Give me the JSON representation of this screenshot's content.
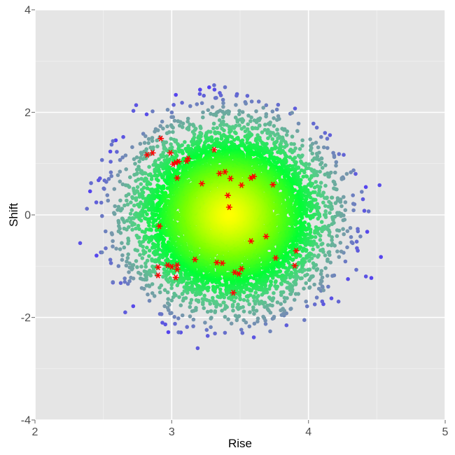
{
  "chart_data": {
    "type": "scatter",
    "xlabel": "Rise",
    "ylabel": "Shift",
    "xlim": [
      2,
      5
    ],
    "ylim": [
      -4,
      4
    ],
    "x_ticks": [
      2,
      3,
      4,
      5
    ],
    "y_ticks": [
      -4,
      -2,
      0,
      2,
      4
    ],
    "grid": true,
    "background": "#e5e5e5",
    "grid_major_color": "#ffffff",
    "grid_minor_color": "#f2f2f2",
    "cloud": {
      "center": [
        3.42,
        0.0
      ],
      "sd_x": 0.32,
      "sd_y": 0.78,
      "count": 9000,
      "color_stops": [
        "#ffff00",
        "#7cff00",
        "#00ff33",
        "#55cc88",
        "#7799aa",
        "#5544ee"
      ]
    },
    "highlight": {
      "marker": "asterisk",
      "color": "#ff0000",
      "points": [
        [
          2.82,
          1.17
        ],
        [
          2.86,
          1.21
        ],
        [
          2.92,
          1.49
        ],
        [
          2.99,
          1.21
        ],
        [
          3.01,
          0.99
        ],
        [
          3.03,
          1.02
        ],
        [
          3.05,
          1.04
        ],
        [
          3.11,
          1.05
        ],
        [
          3.12,
          1.1
        ],
        [
          3.04,
          0.72
        ],
        [
          3.31,
          1.27
        ],
        [
          3.35,
          0.81
        ],
        [
          3.39,
          0.84
        ],
        [
          3.43,
          0.71
        ],
        [
          3.22,
          0.61
        ],
        [
          3.41,
          0.38
        ],
        [
          3.42,
          0.15
        ],
        [
          3.51,
          0.58
        ],
        [
          3.58,
          0.72
        ],
        [
          3.6,
          0.75
        ],
        [
          3.74,
          0.59
        ],
        [
          2.91,
          -0.22
        ],
        [
          3.58,
          -0.51
        ],
        [
          3.69,
          -0.42
        ],
        [
          3.76,
          -0.84
        ],
        [
          3.91,
          -0.7
        ],
        [
          3.17,
          -0.87
        ],
        [
          3.33,
          -0.93
        ],
        [
          3.37,
          -0.94
        ],
        [
          2.97,
          -0.98
        ],
        [
          3.0,
          -1.01
        ],
        [
          3.04,
          -0.98
        ],
        [
          2.9,
          -1.02
        ],
        [
          3.04,
          -1.06
        ],
        [
          3.46,
          -1.12
        ],
        [
          3.49,
          -1.15
        ],
        [
          3.51,
          -1.05
        ],
        [
          2.9,
          -1.18
        ],
        [
          3.03,
          -1.22
        ],
        [
          3.9,
          -0.99
        ],
        [
          3.45,
          -1.52
        ]
      ]
    },
    "outliers": [
      [
        3.31,
        2.53
      ],
      [
        3.39,
        2.49
      ],
      [
        2.74,
        2.14
      ],
      [
        2.72,
        2.03
      ],
      [
        2.86,
        2.02
      ],
      [
        2.97,
        2.05
      ],
      [
        2.57,
        1.44
      ],
      [
        2.56,
        1.37
      ],
      [
        2.49,
        1.07
      ],
      [
        2.41,
        0.62
      ],
      [
        2.38,
        0.12
      ],
      [
        2.33,
        -0.55
      ],
      [
        2.49,
        -0.73
      ],
      [
        2.57,
        -1.31
      ],
      [
        2.66,
        -1.9
      ],
      [
        3.05,
        -2.29
      ],
      [
        3.19,
        -2.6
      ],
      [
        3.72,
        -2.27
      ],
      [
        3.97,
        -2.05
      ],
      [
        4.28,
        0.8
      ],
      [
        4.31,
        0.83
      ],
      [
        4.33,
        0.87
      ],
      [
        4.39,
        0.45
      ],
      [
        4.52,
        0.58
      ],
      [
        4.53,
        -0.82
      ],
      [
        4.46,
        -1.23
      ],
      [
        4.42,
        -1.2
      ],
      [
        4.35,
        -1.07
      ],
      [
        4.38,
        -0.42
      ],
      [
        4.44,
        0.07
      ],
      [
        4.22,
        -1.69
      ],
      [
        4.11,
        -1.47
      ],
      [
        3.67,
        2.09
      ],
      [
        3.88,
        1.99
      ]
    ]
  }
}
